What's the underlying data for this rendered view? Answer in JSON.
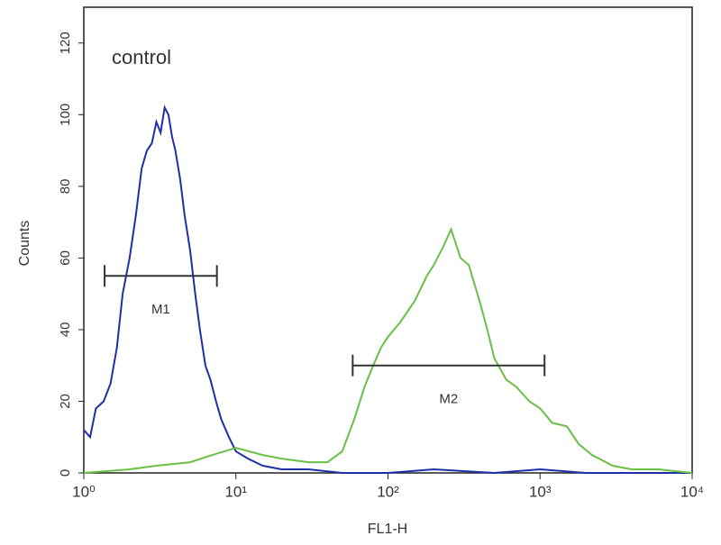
{
  "chart_data": {
    "type": "line",
    "annotation": "control",
    "x_label": "FL1-H",
    "y_label": "Counts",
    "xscale": "log",
    "xlim": [
      1,
      10000
    ],
    "xticks": [
      {
        "value": 1,
        "label": "10⁰"
      },
      {
        "value": 10,
        "label": "10¹"
      },
      {
        "value": 100,
        "label": "10²"
      },
      {
        "value": 1000,
        "label": "10³"
      },
      {
        "value": 10000,
        "label": "10⁴"
      }
    ],
    "ylim": [
      0,
      130
    ],
    "yticks": [
      0,
      20,
      40,
      60,
      80,
      100,
      120
    ],
    "series": [
      {
        "color": "#1f2fa6",
        "x": [
          1,
          1.1,
          1.2,
          1.35,
          1.5,
          1.65,
          1.8,
          2,
          2.2,
          2.4,
          2.6,
          2.8,
          3,
          3.2,
          3.4,
          3.6,
          3.8,
          4,
          4.3,
          4.6,
          5,
          5.4,
          5.8,
          6.3,
          6.8,
          7.4,
          8,
          9,
          10,
          12,
          15,
          20,
          30,
          50,
          100,
          200,
          500,
          1000,
          2000,
          5000,
          10000
        ],
        "values": [
          12,
          10,
          18,
          20,
          25,
          35,
          50,
          60,
          72,
          85,
          90,
          92,
          98,
          95,
          102,
          100,
          94,
          90,
          82,
          72,
          62,
          50,
          40,
          30,
          26,
          20,
          15,
          10,
          6,
          4,
          2,
          1,
          1,
          0,
          0,
          1,
          0,
          1,
          0,
          0,
          0
        ]
      },
      {
        "color": "#6abf45",
        "x": [
          1,
          2,
          3,
          5,
          7,
          10,
          15,
          20,
          30,
          40,
          50,
          60,
          70,
          80,
          90,
          100,
          120,
          150,
          180,
          200,
          230,
          260,
          300,
          340,
          400,
          450,
          500,
          600,
          700,
          850,
          1000,
          1200,
          1500,
          1800,
          2200,
          3000,
          4000,
          6000,
          10000
        ],
        "values": [
          0,
          1,
          2,
          3,
          5,
          7,
          5,
          4,
          3,
          3,
          6,
          15,
          24,
          30,
          35,
          38,
          42,
          48,
          55,
          58,
          63,
          68,
          60,
          58,
          48,
          40,
          32,
          26,
          24,
          20,
          18,
          14,
          13,
          8,
          5,
          2,
          1,
          1,
          0
        ]
      }
    ],
    "gates": [
      {
        "label": "M1",
        "x": [
          1.37,
          7.5
        ],
        "y": 55
      },
      {
        "label": "M2",
        "x": [
          58.6,
          1070
        ],
        "y": 30
      }
    ]
  }
}
